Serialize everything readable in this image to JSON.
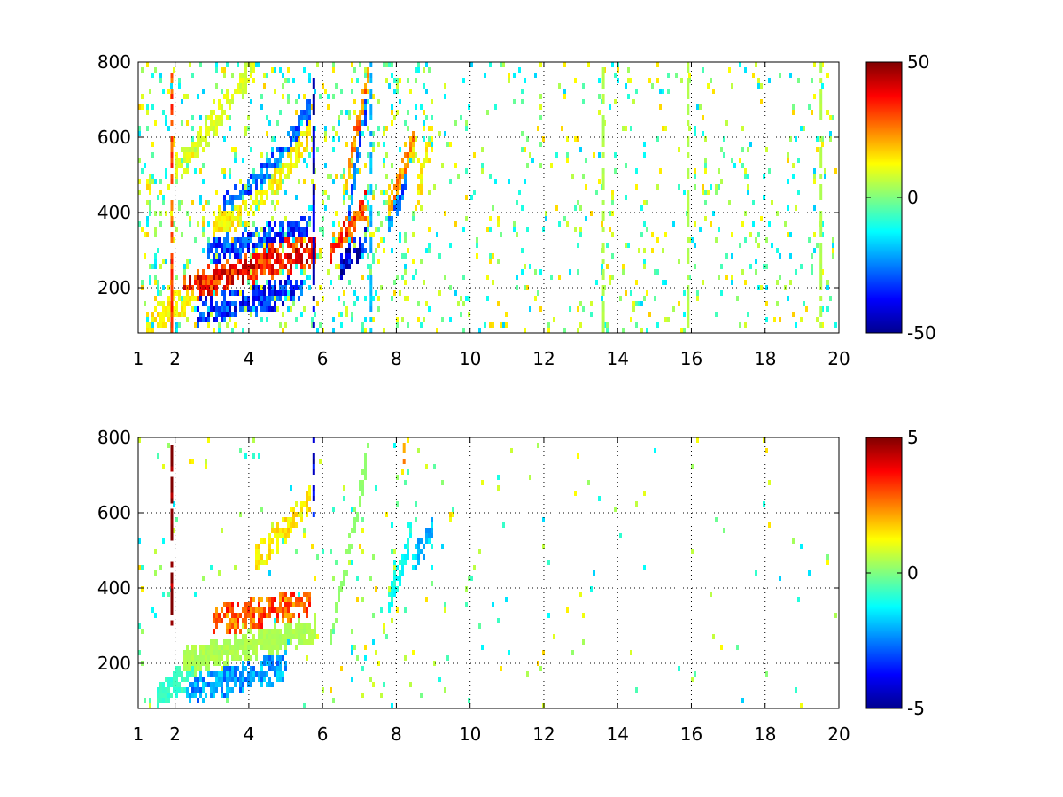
{
  "chart_data": [
    {
      "type": "heatmap",
      "title": "",
      "xlabel": "",
      "ylabel": "",
      "xlim": [
        1,
        20
      ],
      "ylim": [
        80,
        800
      ],
      "x_ticks": [
        1,
        2,
        4,
        6,
        8,
        10,
        12,
        14,
        16,
        18,
        20
      ],
      "y_ticks": [
        200,
        400,
        600,
        800
      ],
      "grid": true,
      "colormap": "jet",
      "colorbar": {
        "min": -50,
        "max": 50,
        "tick_labels": [
          "50",
          "0",
          "-50"
        ],
        "tick_values": [
          50,
          0,
          -50
        ]
      },
      "features": [
        {
          "x_from": 2.2,
          "x_to": 5.8,
          "y_from": 200,
          "y_to": 300,
          "value": 40,
          "spread": 0.55,
          "curve": 1.0
        },
        {
          "x_from": 2.9,
          "x_to": 5.7,
          "y_from": 300,
          "y_to": 350,
          "value": -35,
          "spread": 0.55,
          "curve": 1.0
        },
        {
          "x_from": 2.6,
          "x_to": 5.5,
          "y_from": 130,
          "y_to": 200,
          "value": -38,
          "spread": 0.5,
          "curve": 1.0
        },
        {
          "x_from": 3.5,
          "x_to": 5.7,
          "y_from": 310,
          "y_to": 340,
          "value": 35,
          "spread": 0.45,
          "curve": 1.0
        },
        {
          "x_from": 1.2,
          "x_to": 2.6,
          "y_from": 100,
          "y_to": 190,
          "value": 15,
          "spread": 0.5,
          "curve": 1.0
        },
        {
          "x_from": 3.0,
          "x_to": 5.7,
          "y_from": 370,
          "y_to": 620,
          "value": 15,
          "spread": 0.5,
          "curve": 1.6
        },
        {
          "x_from": 3.3,
          "x_to": 5.7,
          "y_from": 420,
          "y_to": 680,
          "value": -30,
          "spread": 0.4,
          "curve": 1.6
        },
        {
          "x_from": 2.0,
          "x_to": 4.2,
          "y_from": 520,
          "y_to": 800,
          "value": 10,
          "spread": 0.55,
          "curve": 1.2
        },
        {
          "x_from": 6.2,
          "x_to": 7.2,
          "y_from": 300,
          "y_to": 420,
          "value": 35,
          "spread": 0.5,
          "curve": 1.2
        },
        {
          "x_from": 6.5,
          "x_to": 7.2,
          "y_from": 260,
          "y_to": 320,
          "value": -45,
          "spread": 0.4,
          "curve": 1.0
        },
        {
          "x_from": 6.6,
          "x_to": 7.3,
          "y_from": 450,
          "y_to": 800,
          "value": 28,
          "spread": 0.45,
          "curve": 1.0
        },
        {
          "x_from": 6.7,
          "x_to": 7.2,
          "y_from": 380,
          "y_to": 700,
          "value": -30,
          "spread": 0.35,
          "curve": 1.0
        },
        {
          "x_from": 7.8,
          "x_to": 8.5,
          "y_from": 400,
          "y_to": 600,
          "value": 25,
          "spread": 0.45,
          "curve": 1.0
        },
        {
          "x_from": 7.8,
          "x_to": 8.3,
          "y_from": 380,
          "y_to": 500,
          "value": -30,
          "spread": 0.4,
          "curve": 1.0
        },
        {
          "x_from": 8.5,
          "x_to": 9.0,
          "y_from": 420,
          "y_to": 620,
          "value": 15,
          "spread": 0.4,
          "curve": 1.0
        }
      ],
      "columns": [
        {
          "x": 1.9,
          "y_from": 80,
          "y_to": 800,
          "value": 30
        },
        {
          "x": 5.75,
          "y_from": 80,
          "y_to": 800,
          "value": -45
        },
        {
          "x": 7.3,
          "y_from": 80,
          "y_to": 800,
          "value": -20
        },
        {
          "x": 13.6,
          "y_from": 80,
          "y_to": 800,
          "value": 5
        },
        {
          "x": 15.9,
          "y_from": 80,
          "y_to": 800,
          "value": 5
        },
        {
          "x": 19.5,
          "y_from": 80,
          "y_to": 800,
          "value": 5
        }
      ]
    },
    {
      "type": "heatmap",
      "title": "",
      "xlabel": "",
      "ylabel": "",
      "xlim": [
        1,
        20
      ],
      "ylim": [
        80,
        800
      ],
      "x_ticks": [
        1,
        2,
        4,
        6,
        8,
        10,
        12,
        14,
        16,
        18,
        20
      ],
      "y_ticks": [
        200,
        400,
        600,
        800
      ],
      "grid": true,
      "colormap": "jet",
      "colorbar": {
        "min": -5,
        "max": 5,
        "tick_labels": [
          "5",
          "0",
          "-5"
        ],
        "tick_values": [
          5,
          0,
          -5
        ]
      },
      "features": [
        {
          "x_from": 2.2,
          "x_to": 5.8,
          "y_from": 200,
          "y_to": 290,
          "value": 0.5,
          "spread": 0.7,
          "curve": 1.0
        },
        {
          "x_from": 3.0,
          "x_to": 5.7,
          "y_from": 310,
          "y_to": 360,
          "value": 3.2,
          "spread": 0.5,
          "curve": 1.0
        },
        {
          "x_from": 2.3,
          "x_to": 5.0,
          "y_from": 130,
          "y_to": 190,
          "value": -2.5,
          "spread": 0.5,
          "curve": 1.0
        },
        {
          "x_from": 1.5,
          "x_to": 2.5,
          "y_from": 110,
          "y_to": 180,
          "value": -0.8,
          "spread": 0.5,
          "curve": 1.0
        },
        {
          "x_from": 4.2,
          "x_to": 5.7,
          "y_from": 480,
          "y_to": 650,
          "value": 1.6,
          "spread": 0.45,
          "curve": 1.2
        },
        {
          "x_from": 6.2,
          "x_to": 7.3,
          "y_from": 260,
          "y_to": 780,
          "value": 0.2,
          "spread": 0.45,
          "curve": 1.0
        },
        {
          "x_from": 7.8,
          "x_to": 8.4,
          "y_from": 350,
          "y_to": 550,
          "value": -1.2,
          "spread": 0.45,
          "curve": 1.0
        },
        {
          "x_from": 8.4,
          "x_to": 9.0,
          "y_from": 460,
          "y_to": 560,
          "value": -2.0,
          "spread": 0.35,
          "curve": 1.0
        }
      ],
      "columns": [
        {
          "x": 1.9,
          "y_from": 300,
          "y_to": 780,
          "value": 5
        },
        {
          "x": 5.75,
          "y_from": 600,
          "y_to": 800,
          "value": -4
        },
        {
          "x": 3.9,
          "y_from": 760,
          "y_to": 800,
          "value": -4
        },
        {
          "x": 8.2,
          "y_from": 740,
          "y_to": 800,
          "value": 2.5
        }
      ]
    }
  ]
}
